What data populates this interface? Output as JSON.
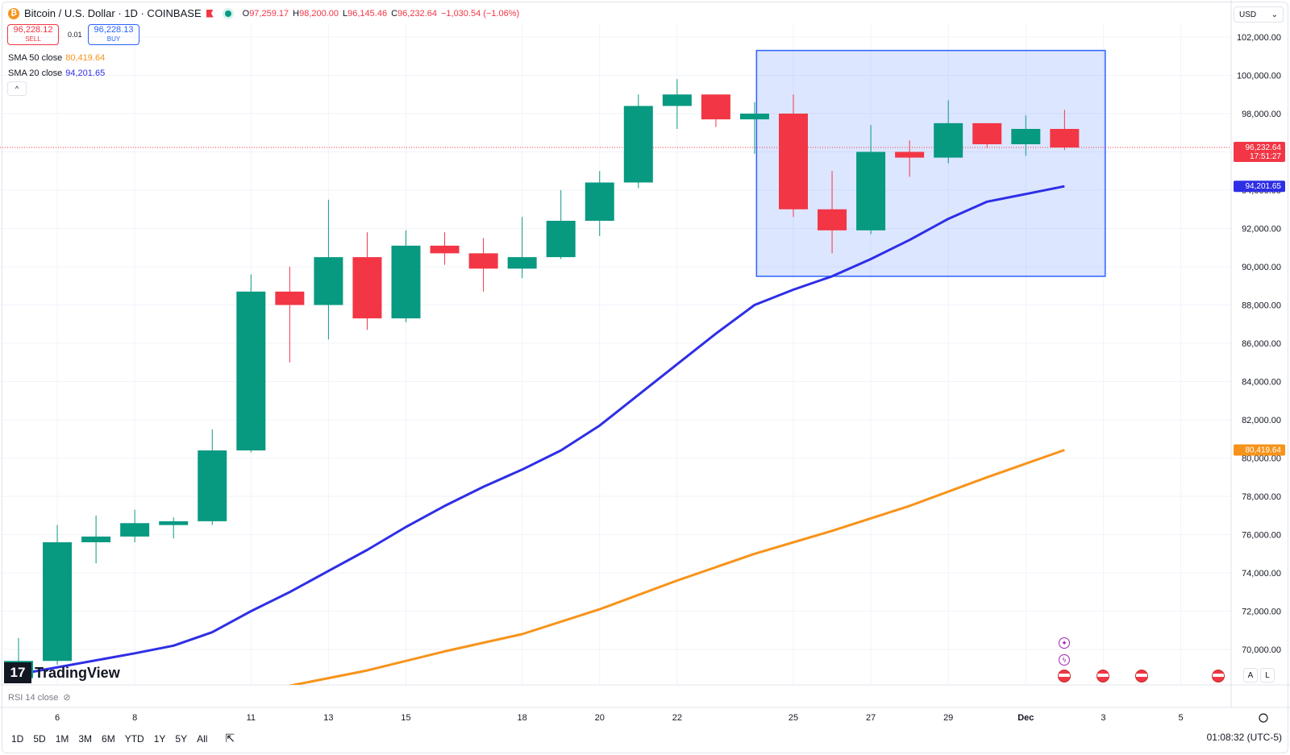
{
  "header": {
    "symbol": "Bitcoin / U.S. Dollar · 1D · COINBASE",
    "coin_glyph": "₿",
    "open_label": "O",
    "open": "97,259.17",
    "high_label": "H",
    "high": "98,200.00",
    "low_label": "L",
    "low": "96,145.46",
    "close_label": "C",
    "close": "96,232.64",
    "change": "−1,030.54 (−1.06%)"
  },
  "trade": {
    "sell_price": "96,228.12",
    "sell_label": "SELL",
    "spread": "0.01",
    "buy_price": "96,228.13",
    "buy_label": "BUY"
  },
  "indicators": {
    "sma50_label": "SMA 50 close",
    "sma50_value": "80,419.64",
    "sma20_label": "SMA 20 close",
    "sma20_value": "94,201.65",
    "collapse_glyph": "^",
    "rsi_label": "RSI 14 close"
  },
  "currency": "USD",
  "logo_text": "TradingView",
  "logo_mark": "17",
  "timeframes": [
    "1D",
    "5D",
    "1M",
    "3M",
    "6M",
    "YTD",
    "1Y",
    "5Y",
    "All"
  ],
  "clock": "01:08:32 (UTC-5)",
  "price_tag": {
    "price": "96,232.64",
    "countdown": "17:51:27"
  },
  "colors": {
    "up": "#089981",
    "down": "#f23645",
    "sma20": "#2e2ee6",
    "sma50": "#f7931a",
    "box": "#2962ff"
  },
  "scale_buttons": [
    "A",
    "L"
  ],
  "chart_data": {
    "type": "candlestick",
    "y_ticks": [
      70000,
      72000,
      74000,
      76000,
      78000,
      80000,
      82000,
      84000,
      86000,
      88000,
      90000,
      92000,
      94000,
      96000,
      98000,
      100000,
      102000
    ],
    "y_tick_labels": [
      "70,000.00",
      "72,000.00",
      "74,000.00",
      "76,000.00",
      "78,000.00",
      "80,000.00",
      "82,000.00",
      "84,000.00",
      "86,000.00",
      "88,000.00",
      "90,000.00",
      "92,000.00",
      "94,000.00",
      "96,000.00",
      "98,000.00",
      "100,000.00",
      "102,000.00"
    ],
    "x_ticks": [
      {
        "i": 1,
        "label": "6"
      },
      {
        "i": 3,
        "label": "8"
      },
      {
        "i": 6,
        "label": "11"
      },
      {
        "i": 8,
        "label": "13"
      },
      {
        "i": 10,
        "label": "15"
      },
      {
        "i": 13,
        "label": "18"
      },
      {
        "i": 15,
        "label": "20"
      },
      {
        "i": 17,
        "label": "22"
      },
      {
        "i": 20,
        "label": "25"
      },
      {
        "i": 22,
        "label": "27"
      },
      {
        "i": 24,
        "label": "29"
      },
      {
        "i": 26,
        "label": "Dec"
      },
      {
        "i": 28,
        "label": "3"
      },
      {
        "i": 30,
        "label": "5"
      }
    ],
    "candles": [
      {
        "date": "Nov 5",
        "o": 68500,
        "h": 70600,
        "l": 68300,
        "c": 69400
      },
      {
        "date": "Nov 6",
        "o": 69400,
        "h": 76500,
        "l": 69200,
        "c": 75600
      },
      {
        "date": "Nov 7",
        "o": 75600,
        "h": 77000,
        "l": 74500,
        "c": 75900
      },
      {
        "date": "Nov 8",
        "o": 75900,
        "h": 77300,
        "l": 75600,
        "c": 76600
      },
      {
        "date": "Nov 9",
        "o": 76500,
        "h": 76900,
        "l": 75800,
        "c": 76700
      },
      {
        "date": "Nov 10",
        "o": 76700,
        "h": 81500,
        "l": 76500,
        "c": 80400
      },
      {
        "date": "Nov 11",
        "o": 80400,
        "h": 89600,
        "l": 80300,
        "c": 88700
      },
      {
        "date": "Nov 12",
        "o": 88700,
        "h": 90000,
        "l": 85000,
        "c": 88000
      },
      {
        "date": "Nov 13",
        "o": 88000,
        "h": 93500,
        "l": 86200,
        "c": 90500
      },
      {
        "date": "Nov 14",
        "o": 90500,
        "h": 91800,
        "l": 86700,
        "c": 87300
      },
      {
        "date": "Nov 15",
        "o": 87300,
        "h": 91900,
        "l": 87100,
        "c": 91100
      },
      {
        "date": "Nov 16",
        "o": 91100,
        "h": 91800,
        "l": 90100,
        "c": 90700
      },
      {
        "date": "Nov 17",
        "o": 90700,
        "h": 91500,
        "l": 88700,
        "c": 89900
      },
      {
        "date": "Nov 18",
        "o": 89900,
        "h": 92600,
        "l": 89400,
        "c": 90500
      },
      {
        "date": "Nov 19",
        "o": 90500,
        "h": 94000,
        "l": 90400,
        "c": 92400
      },
      {
        "date": "Nov 20",
        "o": 92400,
        "h": 95000,
        "l": 91600,
        "c": 94400
      },
      {
        "date": "Nov 21",
        "o": 94400,
        "h": 99000,
        "l": 94100,
        "c": 98400
      },
      {
        "date": "Nov 22",
        "o": 98400,
        "h": 99800,
        "l": 97200,
        "c": 99000
      },
      {
        "date": "Nov 23",
        "o": 99000,
        "h": 99000,
        "l": 97300,
        "c": 97700
      },
      {
        "date": "Nov 24",
        "o": 97700,
        "h": 98600,
        "l": 95900,
        "c": 98000
      },
      {
        "date": "Nov 25",
        "o": 98000,
        "h": 99000,
        "l": 92600,
        "c": 93000
      },
      {
        "date": "Nov 26",
        "o": 93000,
        "h": 95000,
        "l": 90700,
        "c": 91900
      },
      {
        "date": "Nov 27",
        "o": 91900,
        "h": 97400,
        "l": 91700,
        "c": 96000
      },
      {
        "date": "Nov 28",
        "o": 96000,
        "h": 96600,
        "l": 94700,
        "c": 95700
      },
      {
        "date": "Nov 29",
        "o": 95700,
        "h": 98700,
        "l": 95400,
        "c": 97500
      },
      {
        "date": "Nov 30",
        "o": 97500,
        "h": 97500,
        "l": 96200,
        "c": 96400
      },
      {
        "date": "Dec 1",
        "o": 96400,
        "h": 97900,
        "l": 95800,
        "c": 97200
      },
      {
        "date": "Dec 2",
        "o": 97200,
        "h": 98200,
        "l": 96100,
        "c": 96230
      }
    ],
    "series": [
      {
        "name": "SMA 20 close",
        "x": [
          0,
          3,
          4,
          5,
          6,
          7,
          8,
          9,
          10,
          11,
          12,
          13,
          14,
          15,
          16,
          17,
          18,
          19,
          20,
          21,
          22,
          23,
          24,
          25,
          26,
          27
        ],
        "y": [
          68700,
          69800,
          70200,
          70900,
          72000,
          73000,
          74100,
          75200,
          76400,
          77500,
          78500,
          79400,
          80400,
          81700,
          83300,
          84900,
          86500,
          88000,
          88800,
          89500,
          90400,
          91400,
          92500,
          93400,
          93800,
          94201.65
        ]
      },
      {
        "name": "SMA 50 close",
        "x": [
          7,
          9,
          11,
          13,
          15,
          17,
          19,
          21,
          23,
          25,
          27
        ],
        "y": [
          68100,
          68900,
          69900,
          70800,
          72100,
          73600,
          75000,
          76200,
          77500,
          79000,
          80419.64
        ]
      }
    ],
    "rectangle": {
      "x0": 19.05,
      "x1": 28.05,
      "y0": 89500,
      "y1": 101300
    }
  }
}
